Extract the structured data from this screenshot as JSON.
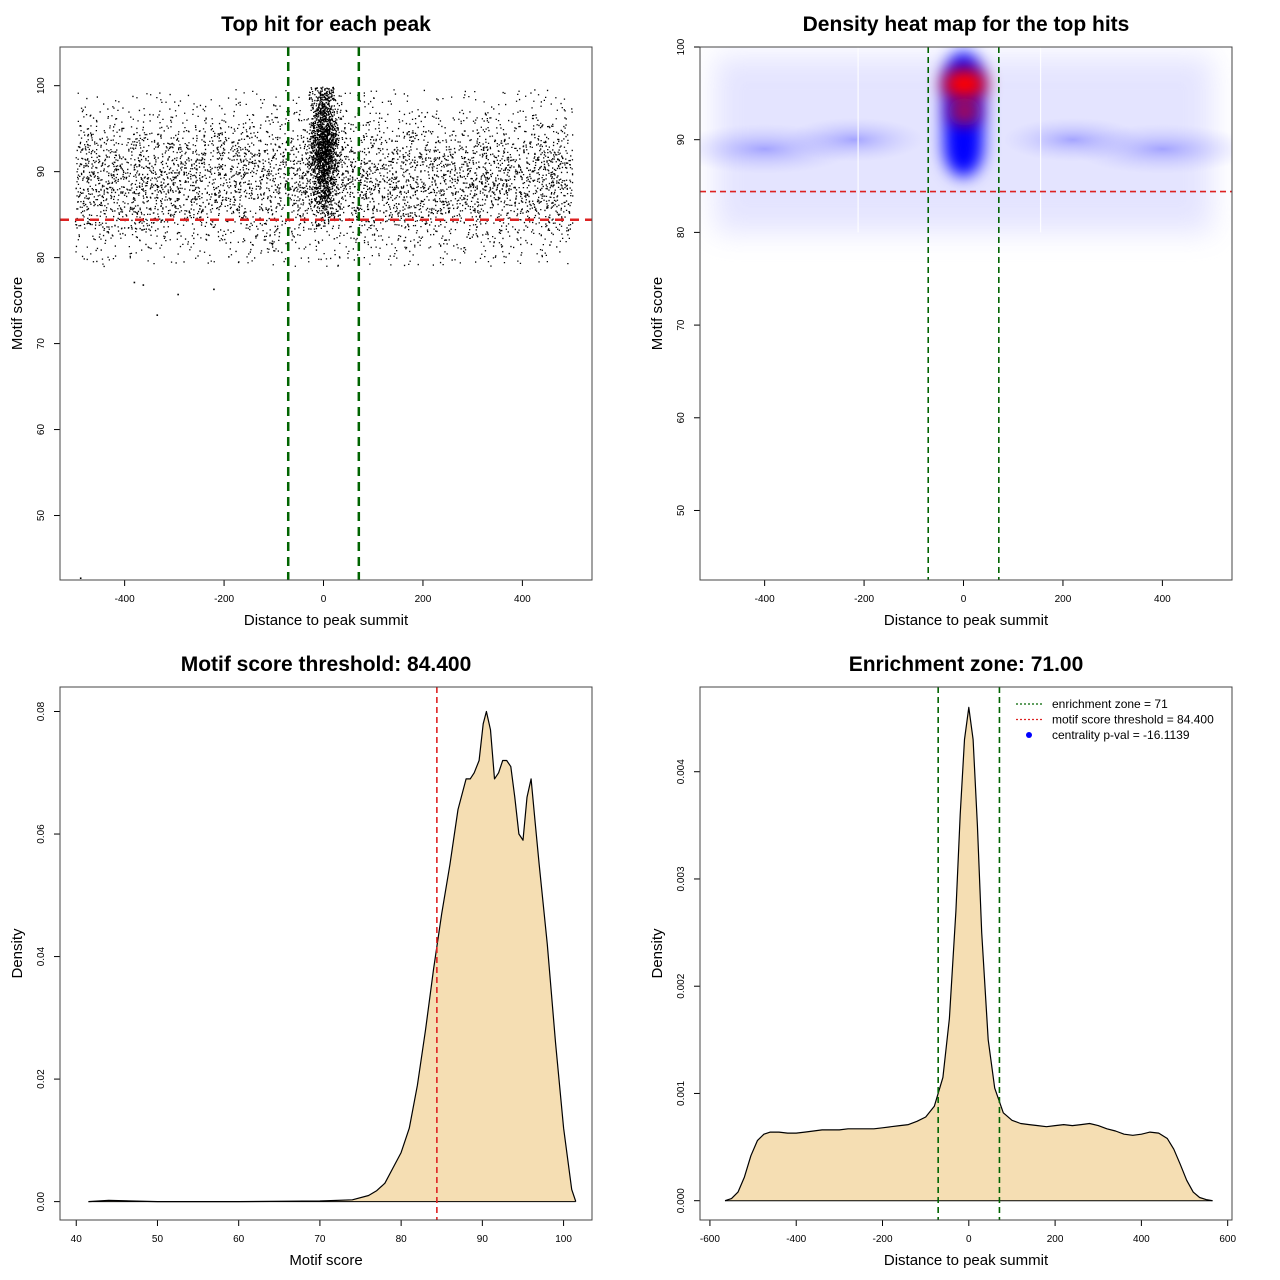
{
  "chart_data": [
    {
      "type": "scatter",
      "title": "Top hit for each peak",
      "xlabel": "Distance to peak summit",
      "ylabel": "Motif score",
      "xlim": [
        -530,
        540
      ],
      "ylim": [
        42.5,
        104.5
      ],
      "xticks": [
        -400,
        -200,
        0,
        200,
        400
      ],
      "yticks": [
        50,
        60,
        70,
        80,
        90,
        100
      ],
      "grid": false,
      "legend": "none",
      "vlines": [
        -71,
        71
      ],
      "hline": 84.4,
      "vline_color": "#006400",
      "hline_color": "#dd2222",
      "point_color": "#000000",
      "point_summary": {
        "x_range": [
          -500,
          500
        ],
        "background_score_mean": 89,
        "center_cluster_x": [
          -40,
          40
        ],
        "center_cluster_score": [
          86,
          100
        ]
      },
      "outliers": [
        {
          "x": -490,
          "y": 42.8
        },
        {
          "x": -336,
          "y": 73.4
        },
        {
          "x": -382,
          "y": 77.2
        },
        {
          "x": -294,
          "y": 75.8
        },
        {
          "x": -222,
          "y": 76.4
        },
        {
          "x": -364,
          "y": 76.9
        }
      ]
    },
    {
      "type": "heatmap",
      "title": "Density heat map for the top hits",
      "xlabel": "Distance to peak summit",
      "ylabel": "Motif score",
      "xlim": [
        -530,
        540
      ],
      "ylim": [
        42.5,
        100
      ],
      "xticks": [
        -400,
        -200,
        0,
        200,
        400
      ],
      "yticks": [
        50,
        60,
        70,
        80,
        90,
        100
      ],
      "grid": false,
      "vlines": [
        -71,
        71
      ],
      "hline": 84.4,
      "colors": [
        "#ffffff",
        "#0000ff",
        "#ff0000"
      ],
      "peak": {
        "x": 2,
        "y": 96
      }
    },
    {
      "type": "area",
      "title": "Motif score threshold: 84.400",
      "xlabel": "Motif score",
      "ylabel": "Density",
      "xlim": [
        38,
        103.5
      ],
      "ylim": [
        -0.003,
        0.084
      ],
      "xticks": [
        40,
        50,
        60,
        70,
        80,
        90,
        100
      ],
      "yticks": [
        0.0,
        0.02,
        0.04,
        0.06,
        0.08
      ],
      "ytick_labels": [
        "0.00",
        "0.02",
        "0.04",
        "0.06",
        "0.08"
      ],
      "fill_color": "#f5deb3",
      "vline": 84.4,
      "vline_color": "#dd2222",
      "x": [
        41.5,
        44,
        50,
        60,
        70,
        74,
        76,
        77,
        78,
        79,
        80,
        81,
        82,
        83,
        84,
        85,
        86,
        87,
        88,
        88.5,
        89,
        89.6,
        90.1,
        90.5,
        91,
        91.5,
        92,
        92.5,
        93,
        93.5,
        94,
        94.5,
        95,
        95.5,
        96,
        96.5,
        97,
        98,
        99,
        100,
        101,
        101.5
      ],
      "y": [
        0.0,
        0.0002,
        0.0,
        0.0,
        0.0001,
        0.0003,
        0.001,
        0.0018,
        0.003,
        0.0055,
        0.008,
        0.012,
        0.019,
        0.028,
        0.038,
        0.047,
        0.055,
        0.064,
        0.069,
        0.069,
        0.07,
        0.072,
        0.078,
        0.08,
        0.077,
        0.069,
        0.07,
        0.072,
        0.072,
        0.071,
        0.066,
        0.06,
        0.059,
        0.066,
        0.069,
        0.062,
        0.055,
        0.042,
        0.026,
        0.012,
        0.002,
        0.0
      ]
    },
    {
      "type": "area",
      "title": "Enrichment zone: 71.00",
      "xlabel": "Distance to peak summit",
      "ylabel": "Density",
      "xlim": [
        -623,
        610
      ],
      "ylim": [
        -0.00018,
        0.00479
      ],
      "xticks": [
        -600,
        -400,
        -200,
        0,
        200,
        400,
        600
      ],
      "yticks": [
        0.0,
        0.001,
        0.002,
        0.003,
        0.004
      ],
      "ytick_labels": [
        "0.000",
        "0.001",
        "0.002",
        "0.003",
        "0.004"
      ],
      "fill_color": "#f5deb3",
      "vlines": [
        -71,
        71
      ],
      "vline_color": "#006400",
      "x": [
        -565,
        -550,
        -535,
        -520,
        -505,
        -490,
        -475,
        -460,
        -440,
        -420,
        -400,
        -380,
        -360,
        -340,
        -320,
        -300,
        -280,
        -260,
        -240,
        -220,
        -200,
        -180,
        -160,
        -140,
        -120,
        -100,
        -80,
        -60,
        -45,
        -30,
        -20,
        -10,
        0,
        10,
        20,
        30,
        45,
        60,
        80,
        100,
        120,
        140,
        160,
        180,
        200,
        220,
        240,
        260,
        280,
        300,
        320,
        340,
        360,
        380,
        400,
        420,
        440,
        460,
        475,
        490,
        505,
        520,
        535,
        550,
        565
      ],
      "y": [
        0.0,
        2e-05,
        8e-05,
        0.00022,
        0.00042,
        0.00056,
        0.00062,
        0.00064,
        0.00064,
        0.00063,
        0.00063,
        0.00064,
        0.00065,
        0.00066,
        0.00066,
        0.00066,
        0.00067,
        0.00067,
        0.00067,
        0.00067,
        0.00068,
        0.00069,
        0.0007,
        0.00071,
        0.00074,
        0.00078,
        0.00088,
        0.00115,
        0.0017,
        0.0027,
        0.0036,
        0.0043,
        0.0046,
        0.0043,
        0.0035,
        0.0025,
        0.0015,
        0.00105,
        0.00082,
        0.00075,
        0.00072,
        0.00071,
        0.0007,
        0.00069,
        0.0007,
        0.00071,
        0.0007,
        0.00071,
        0.00072,
        0.0007,
        0.00067,
        0.00065,
        0.00062,
        0.00061,
        0.00062,
        0.00064,
        0.00063,
        0.00058,
        0.00048,
        0.00034,
        0.00019,
        8e-05,
        3e-05,
        1e-05,
        0.0
      ],
      "legend": {
        "placement": "top-right",
        "entries": [
          {
            "label": "enrichment zone = 71",
            "color": "#006400",
            "symbol": "dotted-line"
          },
          {
            "label": "motif score threshold = 84.400",
            "color": "#dd2222",
            "symbol": "dotted-line"
          },
          {
            "label": "centrality p-val = -16.1139",
            "color": "#0000ff",
            "symbol": "dot"
          }
        ]
      }
    }
  ]
}
